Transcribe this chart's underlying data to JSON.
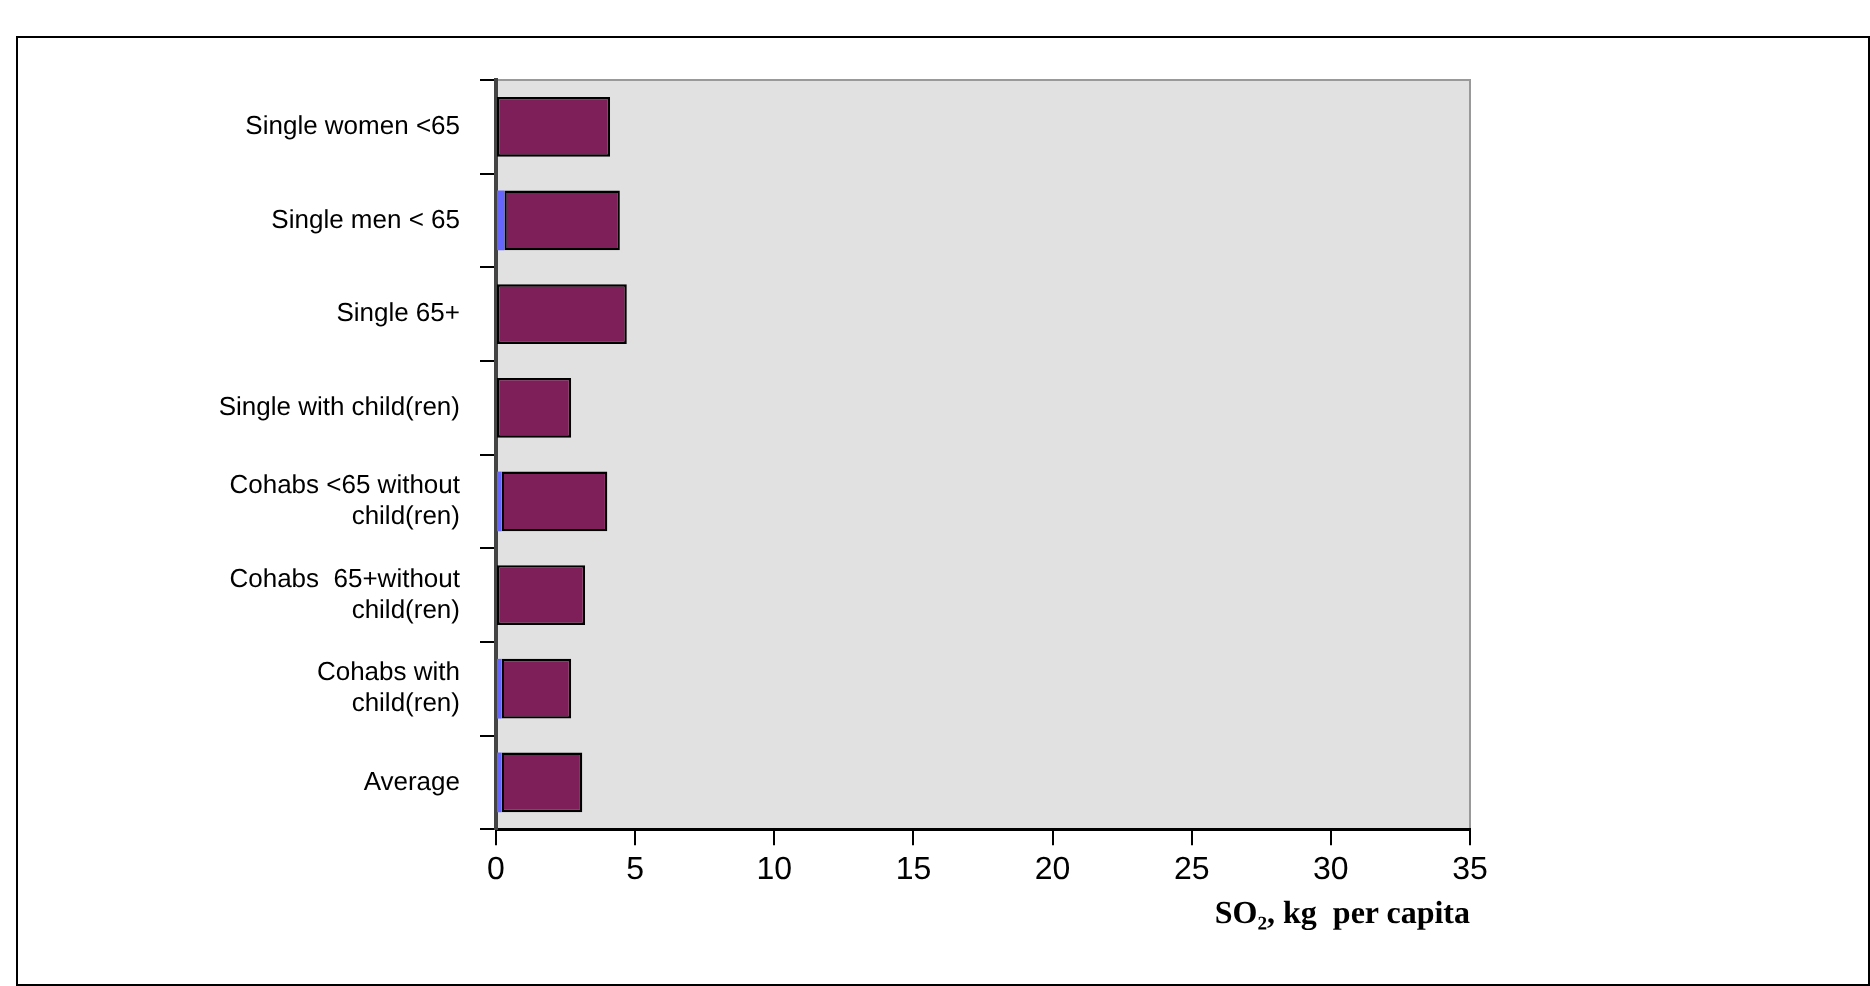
{
  "chart_data": {
    "type": "bar",
    "orientation": "horizontal",
    "stacked": true,
    "xlabel": "SO₂, kg  per capita",
    "categories": [
      "Single women <65",
      "Single men < 65",
      "Single 65+",
      "Single with child(ren)",
      "Cohabs <65 without\nchild(ren)",
      "Cohabs  65+without\nchild(ren)",
      "Cohabs with\nchild(ren)",
      "Average"
    ],
    "series": [
      {
        "color": "#6666ff",
        "values": [
          0,
          0.3,
          0,
          0,
          0.2,
          0,
          0.2,
          0.2
        ]
      },
      {
        "color": "#7f1f5a",
        "values": [
          4.1,
          4.15,
          4.7,
          2.7,
          3.8,
          3.2,
          2.5,
          2.9
        ]
      }
    ],
    "xlim": [
      0,
      35
    ],
    "xticks": [
      0,
      5,
      10,
      15,
      20,
      25,
      30,
      35
    ],
    "grid": false,
    "legend": false
  }
}
